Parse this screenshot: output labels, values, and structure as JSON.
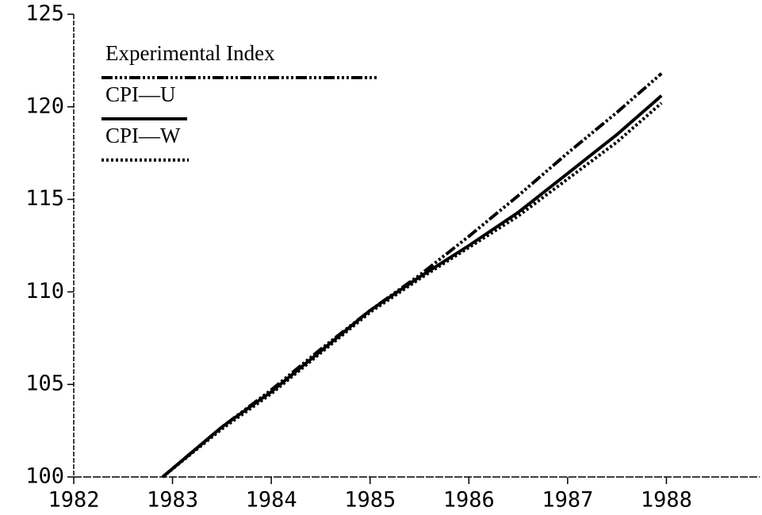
{
  "chart_data": {
    "type": "line",
    "x": [
      1982.9,
      1983.5,
      1984,
      1984.5,
      1985,
      1985.5,
      1986,
      1986.5,
      1987,
      1987.5,
      1987.95
    ],
    "series": [
      {
        "name": "Experimental Index",
        "color": "#000000",
        "style": "dash-dot",
        "values": [
          100,
          102.7,
          104.7,
          106.9,
          109.0,
          110.9,
          113.0,
          115.2,
          117.5,
          119.7,
          121.8
        ]
      },
      {
        "name": "CPI—U",
        "color": "#000000",
        "style": "solid",
        "values": [
          100,
          102.7,
          104.6,
          106.8,
          109.0,
          110.8,
          112.5,
          114.3,
          116.4,
          118.5,
          120.6
        ]
      },
      {
        "name": "CPI—W",
        "color": "#000000",
        "style": "dotted",
        "values": [
          100,
          102.6,
          104.5,
          106.7,
          108.9,
          110.7,
          112.4,
          114.1,
          116.1,
          118.1,
          120.2
        ]
      }
    ],
    "xlim": [
      1982,
      1989
    ],
    "xticks": [
      1982,
      1983,
      1984,
      1985,
      1986,
      1987,
      1988
    ],
    "ylim": [
      100,
      125
    ],
    "yticks": [
      100,
      105,
      110,
      115,
      120,
      125
    ],
    "legend": "top-left"
  }
}
